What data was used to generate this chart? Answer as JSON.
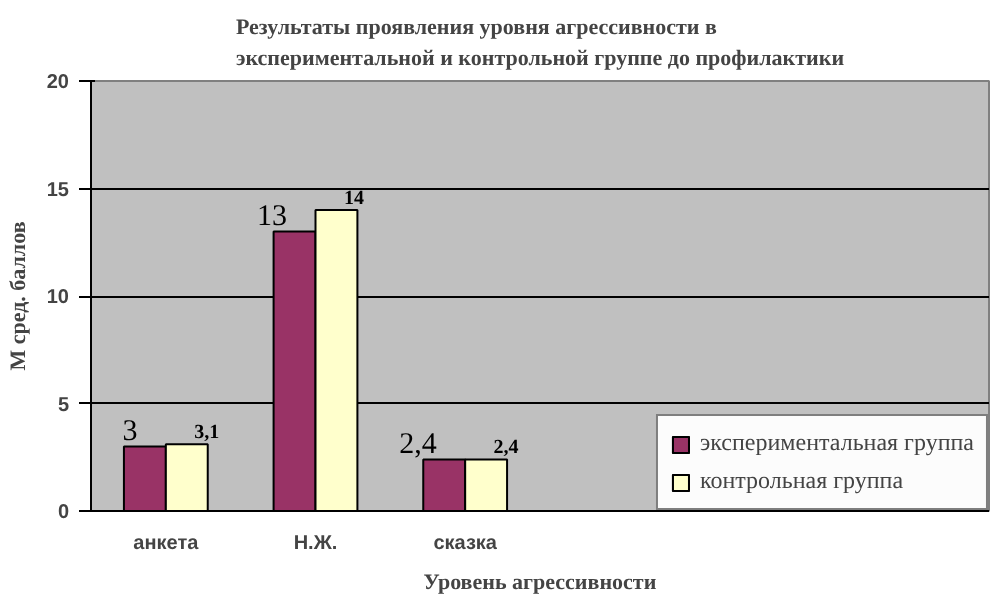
{
  "chart_data": {
    "type": "bar",
    "title": "Результаты проявления уровня агрессивности в экспериментальной и контрольной группе до профилактики",
    "xlabel": "Уровень агрессивности",
    "ylabel": "М сред. баллов",
    "categories": [
      "анкета",
      "Н.Ж.",
      "сказка",
      null,
      null,
      null
    ],
    "series": [
      {
        "name": "экспериментальная группа",
        "color": "#993366",
        "values": [
          3,
          13,
          2.4,
          null,
          null,
          null
        ],
        "value_labels": [
          "3",
          "13",
          "2,4",
          null,
          null,
          null
        ]
      },
      {
        "name": "контрольная группа",
        "color": "#ffffcc",
        "values": [
          3.1,
          14,
          2.4,
          null,
          null,
          null
        ],
        "value_labels": [
          "3,1",
          "14",
          "2,4",
          null,
          null,
          null
        ]
      }
    ],
    "ylim": [
      0,
      20
    ],
    "yticks": [
      0,
      5,
      10,
      15,
      20
    ],
    "grid": "y",
    "legend": "bottom right"
  }
}
